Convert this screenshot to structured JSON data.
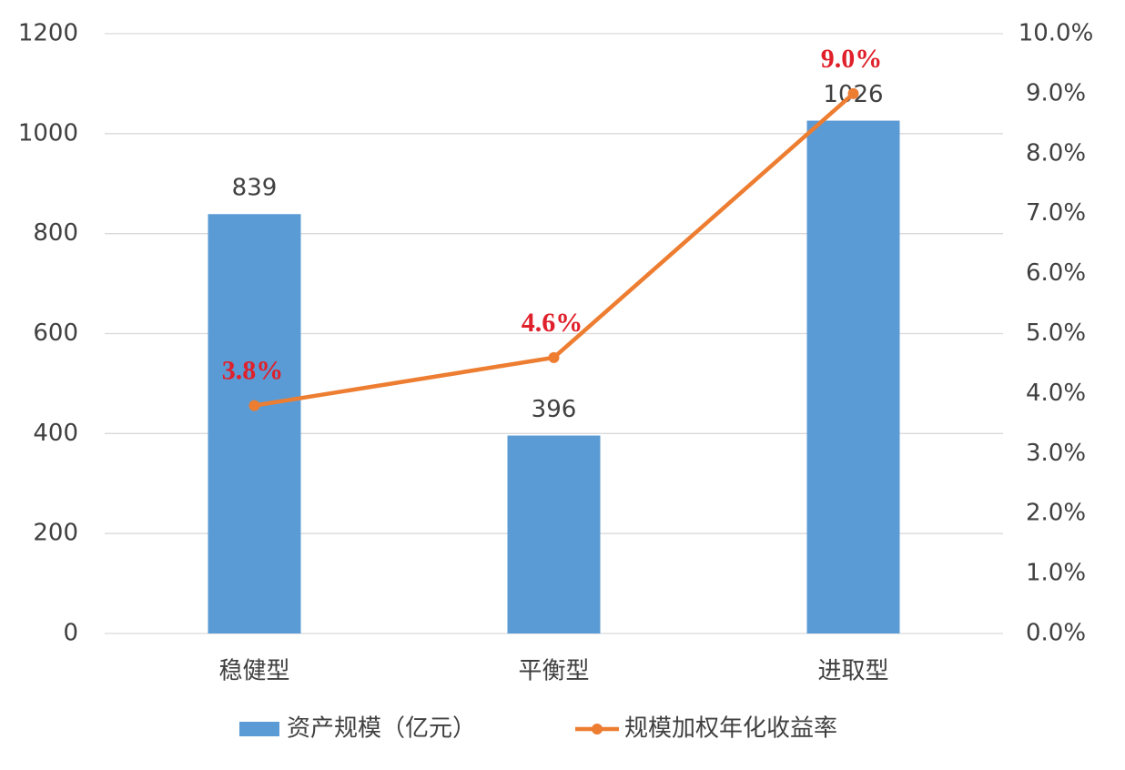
{
  "chart_data": {
    "type": "bar",
    "categories": [
      "稳健型",
      "平衡型",
      "进取型"
    ],
    "series": [
      {
        "name": "资产规模（亿元）",
        "type": "bar",
        "color": "#5b9bd5",
        "values": [
          839,
          396,
          1026
        ]
      },
      {
        "name": "规模加权年化收益率",
        "type": "line",
        "axis": "y2",
        "color": "#ed7d31",
        "values": [
          3.8,
          4.6,
          9.0
        ],
        "value_labels": [
          "3.8%",
          "4.6%",
          "9.0%"
        ]
      }
    ],
    "ylim": [
      0,
      1200
    ],
    "yticks": [
      0,
      200,
      400,
      600,
      800,
      1000,
      1200
    ],
    "y2lim": [
      0,
      10
    ],
    "y2ticks": [
      {
        "value": 0,
        "label": "0.0%"
      },
      {
        "value": 1,
        "label": "1.0%"
      },
      {
        "value": 2,
        "label": "2.0%"
      },
      {
        "value": 3,
        "label": "3.0%"
      },
      {
        "value": 4,
        "label": "4.0%"
      },
      {
        "value": 5,
        "label": "5.0%"
      },
      {
        "value": 6,
        "label": "6.0%"
      },
      {
        "value": 7,
        "label": "7.0%"
      },
      {
        "value": 8,
        "label": "8.0%"
      },
      {
        "value": 9,
        "label": "9.0%"
      },
      {
        "value": 10,
        "label": "10.0%"
      }
    ],
    "grid": true,
    "legend": "bottom"
  }
}
